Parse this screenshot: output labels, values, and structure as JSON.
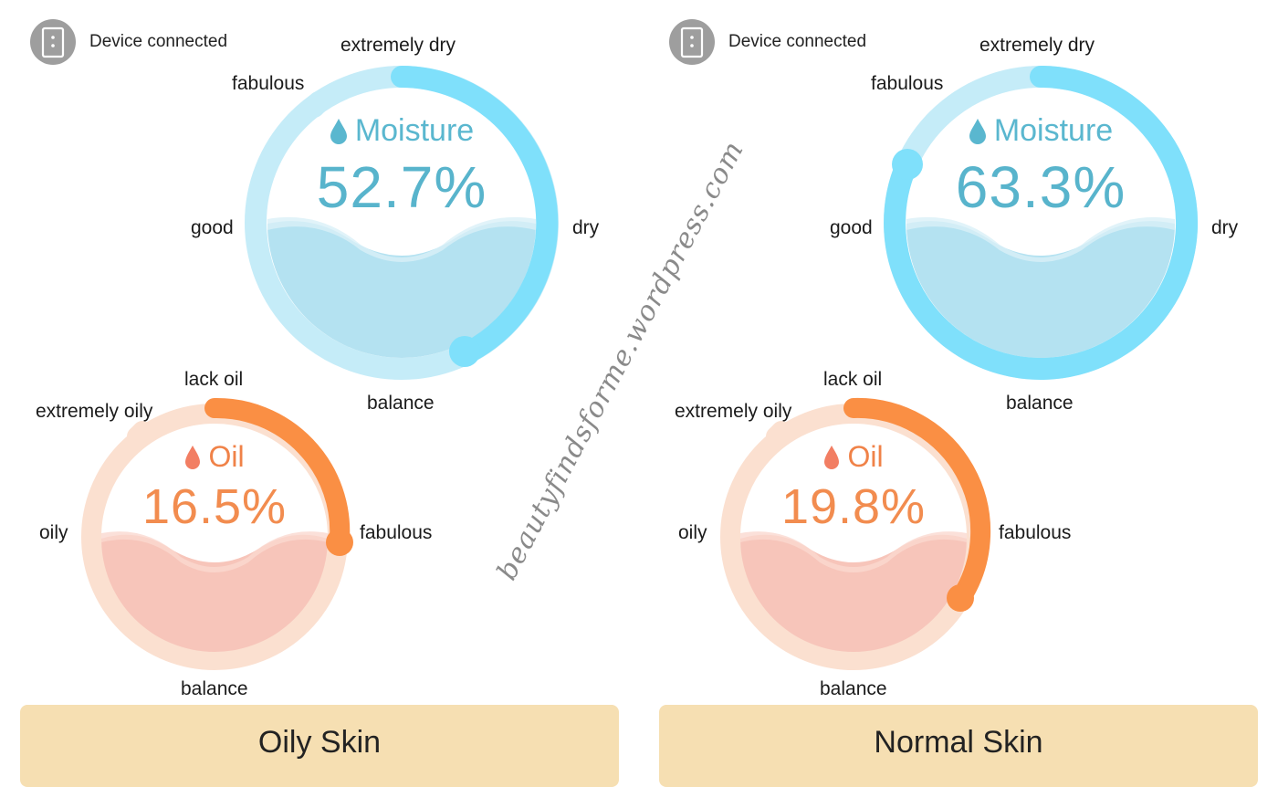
{
  "colors": {
    "moisture_track": "#c5ecf8",
    "moisture_arc": "#7fe0fb",
    "moisture_fill": "#b4e2f1",
    "moisture_text": "#58b4cc",
    "oil_track": "#fbe0d0",
    "oil_arc": "#fa8f44",
    "oil_fill": "#f7c5ba",
    "oil_text": "#f28c4f",
    "result_bg": "#f6dfb2",
    "device_icon": "#9e9e9e"
  },
  "watermark": "beautyfindsforme.wordpress.com",
  "panels": [
    {
      "device": {
        "icon": "device-icon",
        "label": "Device connected"
      },
      "moisture": {
        "title": "Moisture",
        "icon": "water-drop-icon",
        "value_text": "52.7%",
        "level": 0.527,
        "indicator_fraction": 0.56,
        "labels": {
          "top": "extremely dry",
          "upper_left": "fabulous",
          "left": "good",
          "right": "dry",
          "bottom": "balance"
        }
      },
      "oil": {
        "title": "Oil",
        "icon": "oil-drop-icon",
        "value_text": "16.5%",
        "level": 0.165,
        "indicator_fraction": 0.36,
        "labels": {
          "top": "lack oil",
          "upper_left": "extremely oily",
          "left": "oily",
          "right": "fabulous",
          "bottom": "balance"
        }
      },
      "result": "Oily Skin"
    },
    {
      "device": {
        "icon": "device-icon",
        "label": "Device connected"
      },
      "moisture": {
        "title": "Moisture",
        "icon": "water-drop-icon",
        "value_text": "63.3%",
        "level": 0.633,
        "indicator_fraction": 0.9,
        "labels": {
          "top": "extremely dry",
          "upper_left": "fabulous",
          "left": "good",
          "right": "dry",
          "bottom": "balance"
        }
      },
      "oil": {
        "title": "Oil",
        "icon": "oil-drop-icon",
        "value_text": "19.8%",
        "level": 0.198,
        "indicator_fraction": 0.48,
        "labels": {
          "top": "lack oil",
          "upper_left": "extremely oily",
          "left": "oily",
          "right": "fabulous",
          "bottom": "balance"
        }
      },
      "result": "Normal Skin"
    }
  ]
}
